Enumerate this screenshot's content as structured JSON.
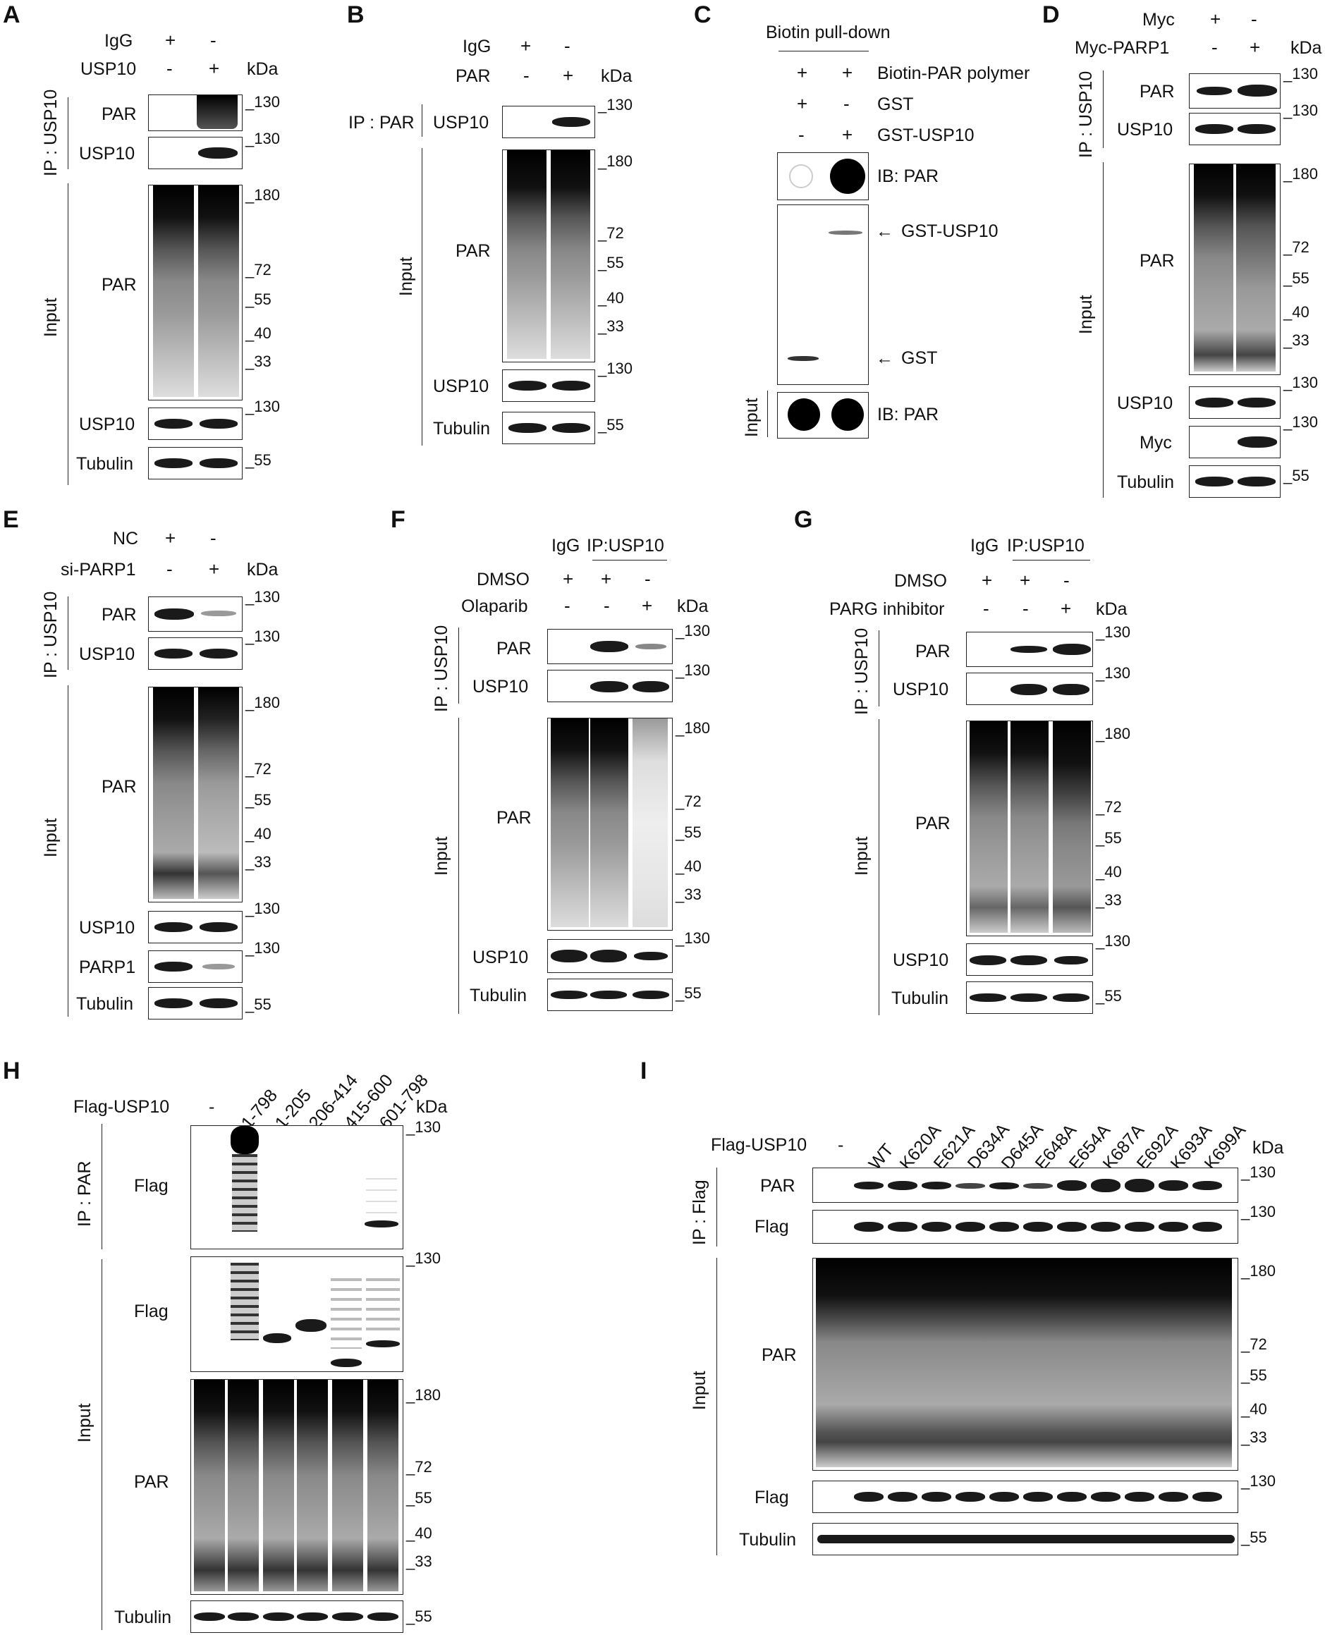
{
  "panels": {
    "A": {
      "letter": "A",
      "conditions": [
        {
          "label": "IgG",
          "signs": [
            "+",
            "-"
          ]
        },
        {
          "label": "USP10",
          "signs": [
            "-",
            "+"
          ]
        }
      ],
      "kda": "kDa",
      "groups": {
        "ip": "IP : USP10",
        "input": "Input"
      },
      "blots": [
        {
          "label": "PAR",
          "markers": [
            "130"
          ]
        },
        {
          "label": "USP10",
          "markers": [
            "130"
          ]
        },
        {
          "label": "PAR",
          "markers": [
            "180",
            "72",
            "55",
            "40",
            "33"
          ]
        },
        {
          "label": "USP10",
          "markers": [
            "130"
          ]
        },
        {
          "label": "Tubulin",
          "markers": [
            "55"
          ]
        }
      ]
    },
    "B": {
      "letter": "B",
      "conditions": [
        {
          "label": "IgG",
          "signs": [
            "+",
            "-"
          ]
        },
        {
          "label": "PAR",
          "signs": [
            "-",
            "+"
          ]
        }
      ],
      "kda": "kDa",
      "groups": {
        "ip": "IP : PAR",
        "input": "Input"
      },
      "blots": [
        {
          "label": "USP10",
          "markers": [
            "130"
          ]
        },
        {
          "label": "PAR",
          "markers": [
            "180",
            "72",
            "55",
            "40",
            "33"
          ]
        },
        {
          "label": "USP10",
          "markers": [
            "130"
          ]
        },
        {
          "label": "Tubulin",
          "markers": [
            "55"
          ]
        }
      ]
    },
    "C": {
      "letter": "C",
      "header": "Biotin pull-down",
      "conditions": [
        {
          "label": "Biotin-PAR polymer",
          "signs": [
            "+",
            "+"
          ]
        },
        {
          "label": "GST",
          "signs": [
            "+",
            "-"
          ]
        },
        {
          "label": "GST-USP10",
          "signs": [
            "-",
            "+"
          ]
        }
      ],
      "groups": {
        "input": "Input"
      },
      "blots": [
        {
          "label": "IB: PAR"
        },
        {
          "label": "GST-USP10",
          "label2": "GST"
        },
        {
          "label": "IB: PAR"
        }
      ]
    },
    "D": {
      "letter": "D",
      "conditions": [
        {
          "label": "Myc",
          "signs": [
            "+",
            "-"
          ]
        },
        {
          "label": "Myc-PARP1",
          "signs": [
            "-",
            "+"
          ]
        }
      ],
      "kda": "kDa",
      "groups": {
        "ip": "IP : USP10",
        "input": "Input"
      },
      "blots": [
        {
          "label": "PAR",
          "markers": [
            "130"
          ]
        },
        {
          "label": "USP10",
          "markers": [
            "130"
          ]
        },
        {
          "label": "PAR",
          "markers": [
            "180",
            "72",
            "55",
            "40",
            "33"
          ]
        },
        {
          "label": "USP10",
          "markers": [
            "130"
          ]
        },
        {
          "label": "Myc",
          "markers": [
            "130"
          ]
        },
        {
          "label": "Tubulin",
          "markers": [
            "55"
          ]
        }
      ]
    },
    "E": {
      "letter": "E",
      "conditions": [
        {
          "label": "NC",
          "signs": [
            "+",
            "-"
          ]
        },
        {
          "label": "si-PARP1",
          "signs": [
            "-",
            "+"
          ]
        }
      ],
      "kda": "kDa",
      "groups": {
        "ip": "IP : USP10",
        "input": "Input"
      },
      "blots": [
        {
          "label": "PAR",
          "markers": [
            "130"
          ]
        },
        {
          "label": "USP10",
          "markers": [
            "130"
          ]
        },
        {
          "label": "PAR",
          "markers": [
            "180",
            "72",
            "55",
            "40",
            "33"
          ]
        },
        {
          "label": "USP10",
          "markers": [
            "130"
          ]
        },
        {
          "label": "PARP1",
          "markers": [
            "130"
          ]
        },
        {
          "label": "Tubulin",
          "markers": [
            "55"
          ]
        }
      ]
    },
    "F": {
      "letter": "F",
      "top": {
        "igg": "IgG",
        "ip": "IP:USP10"
      },
      "conditions": [
        {
          "label": "DMSO",
          "signs": [
            "+",
            "+",
            "-"
          ]
        },
        {
          "label": "Olaparib",
          "signs": [
            "-",
            "-",
            "+"
          ]
        }
      ],
      "kda": "kDa",
      "groups": {
        "ip": "IP : USP10",
        "input": "Input"
      },
      "blots": [
        {
          "label": "PAR",
          "markers": [
            "130"
          ]
        },
        {
          "label": "USP10",
          "markers": [
            "130"
          ]
        },
        {
          "label": "PAR",
          "markers": [
            "180",
            "72",
            "55",
            "40",
            "33"
          ]
        },
        {
          "label": "USP10",
          "markers": [
            "130"
          ]
        },
        {
          "label": "Tubulin",
          "markers": [
            "55"
          ]
        }
      ]
    },
    "G": {
      "letter": "G",
      "top": {
        "igg": "IgG",
        "ip": "IP:USP10"
      },
      "conditions": [
        {
          "label": "DMSO",
          "signs": [
            "+",
            "+",
            "-"
          ]
        },
        {
          "label": "PARG inhibitor",
          "signs": [
            "-",
            "-",
            "+"
          ]
        }
      ],
      "kda": "kDa",
      "groups": {
        "ip": "IP : USP10",
        "input": "Input"
      },
      "blots": [
        {
          "label": "PAR",
          "markers": [
            "130"
          ]
        },
        {
          "label": "USP10",
          "markers": [
            "130"
          ]
        },
        {
          "label": "PAR",
          "markers": [
            "180",
            "72",
            "55",
            "40",
            "33"
          ]
        },
        {
          "label": "USP10",
          "markers": [
            "130"
          ]
        },
        {
          "label": "Tubulin",
          "markers": [
            "55"
          ]
        }
      ]
    },
    "H": {
      "letter": "H",
      "lane_title": "Flag-USP10",
      "lanes": [
        "-",
        "1-798",
        "1-205",
        "206-414",
        "415-600",
        "601-798"
      ],
      "kda": "kDa",
      "groups": {
        "ip": "IP : PAR",
        "input": "Input"
      },
      "blots": [
        {
          "label": "Flag",
          "markers": [
            "130"
          ]
        },
        {
          "label": "Flag",
          "markers": [
            "130"
          ]
        },
        {
          "label": "PAR",
          "markers": [
            "180",
            "72",
            "55",
            "40",
            "33"
          ]
        },
        {
          "label": "Tubulin",
          "markers": [
            "55"
          ]
        }
      ]
    },
    "I": {
      "letter": "I",
      "lane_title": "Flag-USP10",
      "lanes": [
        "-",
        "WT",
        "K620A",
        "E621A",
        "D634A",
        "D645A",
        "E648A",
        "E654A",
        "K687A",
        "E692A",
        "K693A",
        "K699A"
      ],
      "kda": "kDa",
      "groups": {
        "ip": "IP : Flag",
        "input": "Input"
      },
      "blots": [
        {
          "label": "PAR",
          "markers": [
            "130"
          ]
        },
        {
          "label": "Flag",
          "markers": [
            "130"
          ]
        },
        {
          "label": "PAR",
          "markers": [
            "180",
            "72",
            "55",
            "40",
            "33"
          ]
        },
        {
          "label": "Flag",
          "markers": [
            "130"
          ]
        },
        {
          "label": "Tubulin",
          "markers": [
            "55"
          ]
        }
      ]
    }
  }
}
